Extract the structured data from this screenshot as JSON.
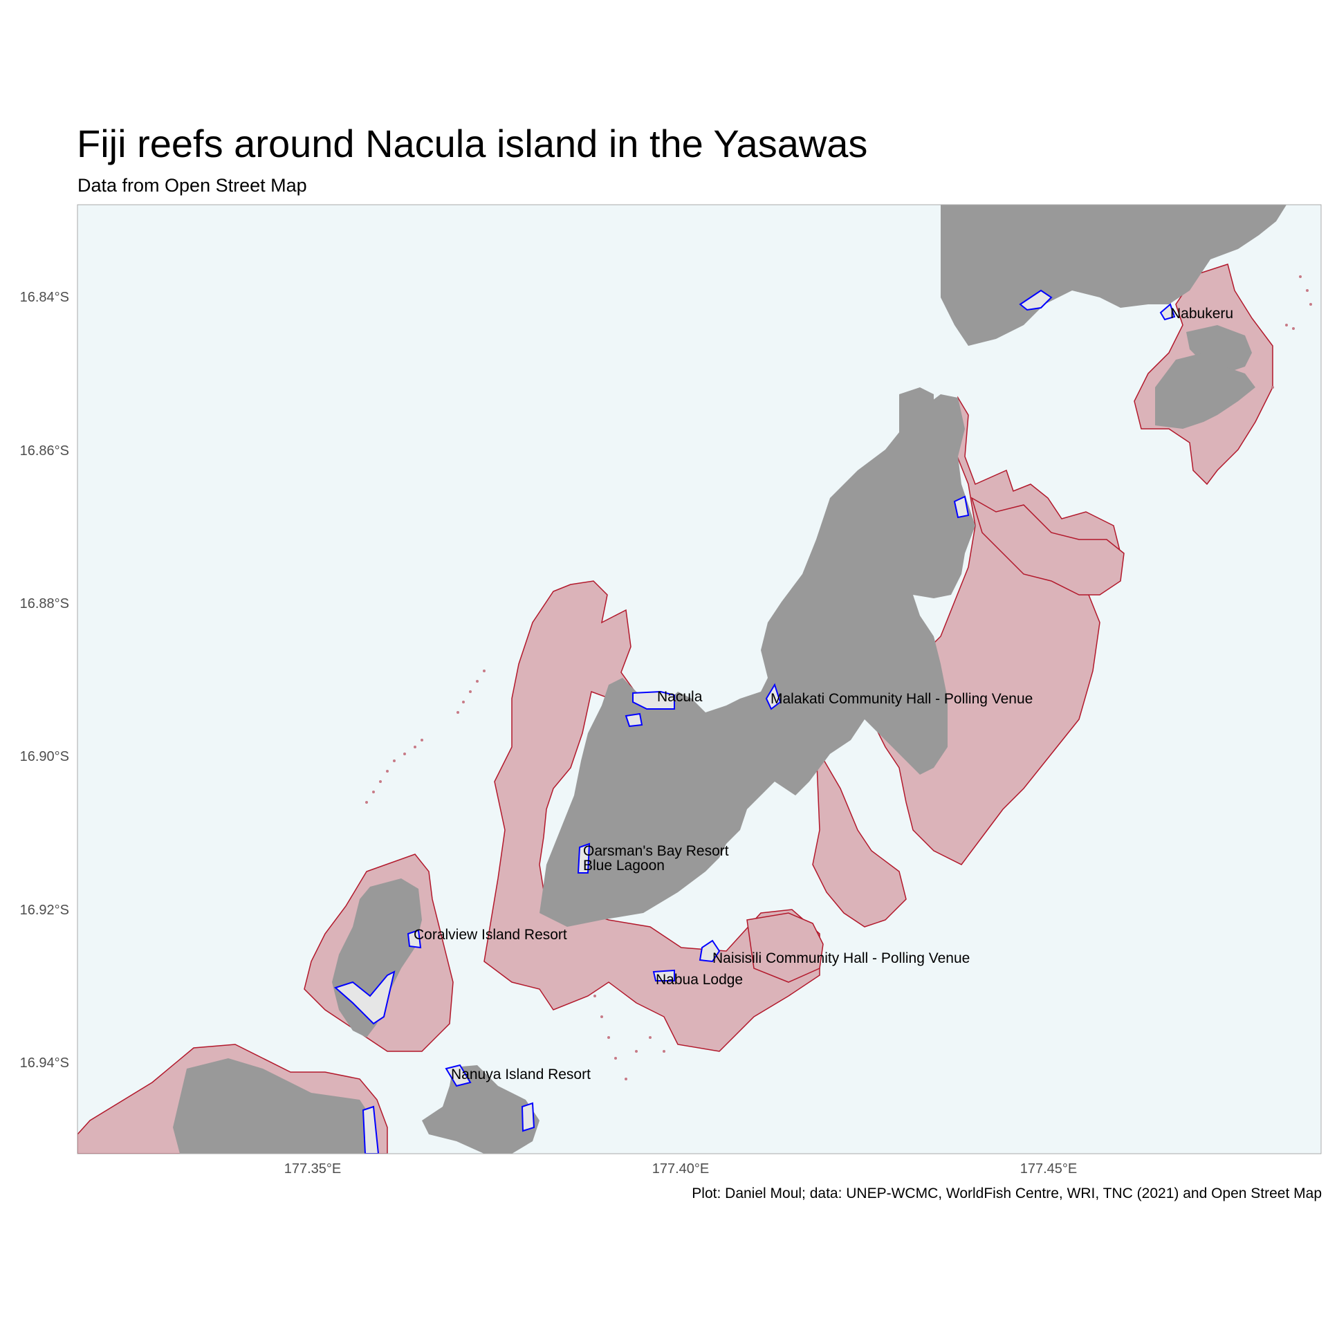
{
  "title": "Fiji reefs around Nacula island in the Yasawas",
  "subtitle": "Data from Open Street Map",
  "caption": "Plot: Daniel Moul; data: UNEP-WCMC, WorldFish Centre, WRI, TNC (2021) and Open Street Map",
  "colors": {
    "sea": "#eff7f9",
    "land": "#999999",
    "reef_fill": "#dbb3b9",
    "reef_outline": "#b2182b",
    "settlement_fill": "#e6e6e6",
    "settlement_outline": "#0000ff",
    "panel_border": "#aaaaaa",
    "tick_text": "#4d4d4d"
  },
  "axes": {
    "y_ticks": [
      "16.84°S",
      "16.86°S",
      "16.88°S",
      "16.90°S",
      "16.92°S",
      "16.94°S"
    ],
    "x_ticks": [
      "177.35°E",
      "177.40°E",
      "177.45°E"
    ]
  },
  "places": [
    {
      "name": "Nabukeru",
      "lon": 177.4665,
      "lat": -16.842
    },
    {
      "name": "Nacula",
      "lon": 177.3985,
      "lat": -16.8925
    },
    {
      "name": "Malakati Community Hall - Polling Venue",
      "lon": 177.4135,
      "lat": -16.8927
    },
    {
      "name": "Oarsman's Bay Resort",
      "lon": 177.3885,
      "lat": -16.9123
    },
    {
      "name": "Blue Lagoon",
      "lon": 177.3885,
      "lat": -16.9141
    },
    {
      "name": "Coralview Island Resort",
      "lon": 177.3615,
      "lat": -16.9229
    },
    {
      "name": "Naisisili Community Hall - Polling Venue",
      "lon": 177.4055,
      "lat": -16.9255
    },
    {
      "name": "Nabua Lodge",
      "lon": 177.3965,
      "lat": -16.9282
    },
    {
      "name": "Nanuya Island Resort",
      "lon": 177.3685,
      "lat": -16.9408
    }
  ]
}
